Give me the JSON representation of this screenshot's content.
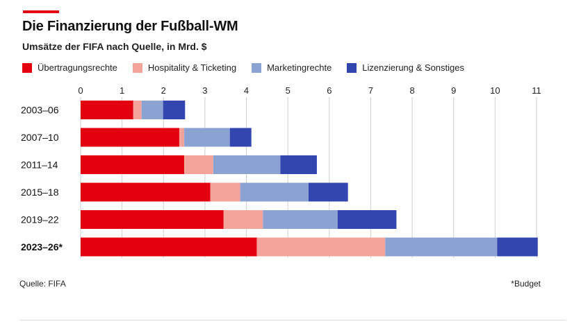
{
  "header": {
    "title": "Die Finanzierung der Fußball-WM",
    "subtitle": "Umsätze der FIFA nach Quelle, in Mrd. $"
  },
  "footer": {
    "source": "Quelle: FIFA",
    "note": "*Budget"
  },
  "colors": {
    "accent": "#e3000f",
    "ubertragung": "#e3000f",
    "hospitality": "#f5a49b",
    "marketing": "#8aa3d2",
    "lizenzierung": "#3346b0",
    "grid": "#cfcfcf"
  },
  "chart_data": {
    "type": "bar",
    "orientation": "horizontal",
    "stacked": true,
    "title": "Die Finanzierung der Fußball-WM",
    "subtitle": "Umsätze der FIFA nach Quelle, in Mrd. $",
    "categories": [
      "2003–06",
      "2007–10",
      "2011–14",
      "2015–18",
      "2019–22",
      "2023–26*"
    ],
    "bold_categories": [
      false,
      false,
      false,
      false,
      false,
      true
    ],
    "xlim": [
      0,
      11
    ],
    "xticks": [
      0,
      1,
      2,
      3,
      4,
      5,
      6,
      7,
      8,
      9,
      10,
      11
    ],
    "xtick_labels": [
      "0",
      "1",
      "2",
      "3",
      "4",
      "5",
      "6",
      "7",
      "8",
      "9",
      "10",
      "11"
    ],
    "x_axis_position": "top",
    "grid": "vertical",
    "legend": "top-left",
    "series": [
      {
        "name": "Übertragungsrechte",
        "color": "#e3000f",
        "values": [
          1.27,
          2.38,
          2.5,
          3.13,
          3.45,
          4.25
        ]
      },
      {
        "name": "Hospitality & Ticketing",
        "color": "#f5a49b",
        "values": [
          0.2,
          0.12,
          0.7,
          0.72,
          0.95,
          3.1
        ]
      },
      {
        "name": "Marketingrechte",
        "color": "#8aa3d2",
        "values": [
          0.52,
          1.1,
          1.62,
          1.65,
          1.8,
          2.7
        ]
      },
      {
        "name": "Lizenzierung & Sonstiges",
        "color": "#3346b0",
        "values": [
          0.53,
          0.52,
          0.88,
          0.95,
          1.42,
          0.98
        ]
      }
    ]
  }
}
